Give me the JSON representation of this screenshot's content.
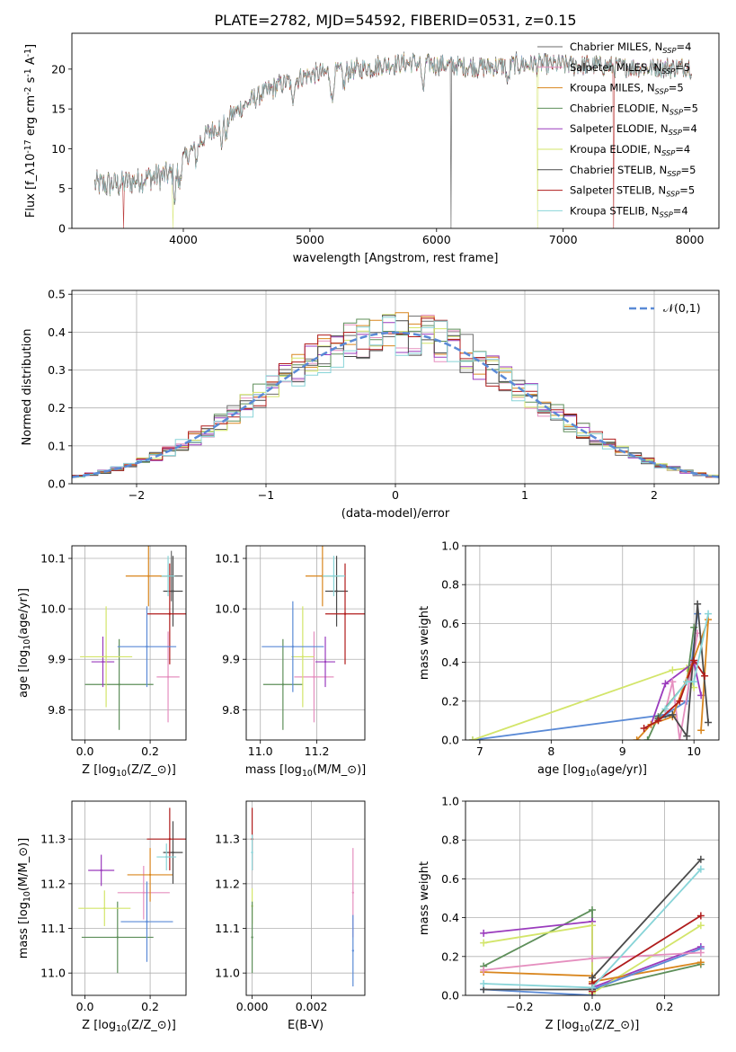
{
  "figure_title": "PLATE=2782, MJD=54592, FIBERID=0531, z=0.15",
  "colors": [
    "#6b6b6b",
    "#e58fbf",
    "#d9861e",
    "#5e8f5a",
    "#9a3bbd",
    "#d3e56a",
    "#4a4a4a",
    "#b01c1c",
    "#88d4d8"
  ],
  "normal_line_color": "#5a8ad6",
  "chart_data": [
    {
      "id": "spectrum",
      "type": "line",
      "title": "PLATE=2782, MJD=54592, FIBERID=0531, z=0.15",
      "xlabel": "wavelength [Angstrom, rest frame]",
      "ylabel": "Flux [f$_\\lambda$10$^{-17}$ erg cm$^{-2}$ s$^{-1}$ A$^{-1}$]",
      "xlim": [
        3120,
        8230
      ],
      "ylim": [
        0,
        24.5
      ],
      "xticks": [
        4000,
        5000,
        6000,
        7000,
        8000
      ],
      "yticks": [
        0,
        5,
        10,
        15,
        20
      ],
      "grid": false,
      "legend": "top-right",
      "series": [
        {
          "name": "Chabrier MILES, N_SSP=4"
        },
        {
          "name": "Salpeter MILES, N_SSP=5"
        },
        {
          "name": "Kroupa MILES, N_SSP=5"
        },
        {
          "name": "Chabrier ELODIE, N_SSP=5"
        },
        {
          "name": "Salpeter ELODIE, N_SSP=4"
        },
        {
          "name": "Kroupa ELODIE, N_SSP=4"
        },
        {
          "name": "Chabrier STELIB, N_SSP=5"
        },
        {
          "name": "Salpeter STELIB, N_SSP=5"
        },
        {
          "name": "Kroupa STELIB, N_SSP=4"
        }
      ],
      "continuum": {
        "x": [
          3300,
          3500,
          3700,
          3900,
          4000,
          4200,
          4400,
          4600,
          4800,
          5000,
          5200,
          5400,
          5600,
          5800,
          6000,
          6200,
          6400,
          6600,
          6800,
          7000,
          7200,
          7400,
          7600,
          7800,
          8000
        ],
        "y": [
          5.5,
          5.6,
          6.3,
          6.8,
          8.6,
          12.0,
          14.5,
          16.7,
          18.3,
          19.3,
          19.6,
          20.0,
          20.6,
          20.8,
          20.6,
          20.4,
          20.2,
          20.6,
          20.6,
          20.5,
          20.5,
          20.3,
          20.2,
          20.2,
          20.3
        ]
      },
      "features": [
        {
          "x": 3934,
          "depth": 3.5
        },
        {
          "x": 3969,
          "depth": 3.0
        },
        {
          "x": 4102,
          "depth": 2.0
        },
        {
          "x": 4300,
          "depth": 3.0
        },
        {
          "x": 4340,
          "depth": 2.5
        },
        {
          "x": 4861,
          "depth": 3.0
        },
        {
          "x": 5175,
          "depth": 4.0
        },
        {
          "x": 5270,
          "depth": 2.0
        },
        {
          "x": 5893,
          "depth": 4.0
        },
        {
          "x": 6563,
          "depth": 2.5
        }
      ],
      "gap_drops": [
        {
          "x": 3530,
          "series": 7
        },
        {
          "x": 3920,
          "series": 5
        },
        {
          "x": 6115,
          "series": 0
        },
        {
          "x": 6800,
          "series": 5
        },
        {
          "x": 7400,
          "series": 7
        }
      ]
    },
    {
      "id": "residual-hist",
      "type": "histogram",
      "xlabel": "(data-model)/error",
      "ylabel": "Normed distribution",
      "xlim": [
        -2.5,
        2.5
      ],
      "ylim": [
        0,
        0.51
      ],
      "xticks": [
        -2,
        -1,
        0,
        1,
        2
      ],
      "yticks": [
        0.0,
        0.1,
        0.2,
        0.3,
        0.4,
        0.5
      ],
      "grid": true,
      "legend": "top-right",
      "reference_curve": {
        "name": "$\\mathcal{N}(0,1)$",
        "mean": 0,
        "sigma": 1
      },
      "bin_width": 0.1
    },
    {
      "id": "age-vs-Z",
      "type": "scatter",
      "xlabel": "Z [log$_{10}$($Z/Z_\\odot$)]",
      "ylabel": "age  [log$_{10}$($age/yr$)]",
      "xlim": [
        -0.04,
        0.31
      ],
      "ylim": [
        9.74,
        10.125
      ],
      "xticks": [
        0.0,
        0.2
      ],
      "yticks": [
        9.8,
        9.9,
        10.0,
        10.1
      ],
      "grid": true,
      "points": [
        {
          "series": 0,
          "x": 0.265,
          "y": 10.065,
          "xerr": 0.035,
          "yerr": 0.05
        },
        {
          "series": 1,
          "x": 0.255,
          "y": 9.865,
          "xerr": 0.035,
          "yerr": 0.09
        },
        {
          "series": 2,
          "x": 0.195,
          "y": 10.065,
          "xerr": 0.07,
          "yerr": 0.06
        },
        {
          "series": 3,
          "x": 0.105,
          "y": 9.85,
          "xerr": 0.105,
          "yerr": 0.09
        },
        {
          "series": 4,
          "x": 0.055,
          "y": 9.895,
          "xerr": 0.035,
          "yerr": 0.05
        },
        {
          "series": 5,
          "x": 0.065,
          "y": 9.905,
          "xerr": 0.08,
          "yerr": 0.1
        },
        {
          "series": 6,
          "x": 0.27,
          "y": 10.035,
          "xerr": 0.03,
          "yerr": 0.07
        },
        {
          "series": 7,
          "x": 0.26,
          "y": 9.99,
          "xerr": 0.07,
          "yerr": 0.1
        },
        {
          "series": 8,
          "x": 0.255,
          "y": 10.065,
          "xerr": 0.02,
          "yerr": 0.04
        },
        {
          "series": 9,
          "x": 0.19,
          "y": 9.925,
          "xerr": 0.09,
          "yerr": 0.08
        }
      ]
    },
    {
      "id": "age-vs-mass",
      "type": "scatter",
      "xlabel": "mass [log$_{10}$($M/M_\\odot$)]",
      "ylabel": "",
      "xlim": [
        10.95,
        11.37
      ],
      "ylim": [
        9.74,
        10.125
      ],
      "xticks": [
        11.0,
        11.2
      ],
      "yticks": [
        9.8,
        9.9,
        10.0,
        10.1
      ],
      "grid": true,
      "points": [
        {
          "series": 1,
          "x": 11.19,
          "y": 9.865,
          "xerr": 0.07,
          "yerr": 0.09
        },
        {
          "series": 2,
          "x": 11.22,
          "y": 10.065,
          "xerr": 0.06,
          "yerr": 0.06
        },
        {
          "series": 3,
          "x": 11.08,
          "y": 9.85,
          "xerr": 0.07,
          "yerr": 0.09
        },
        {
          "series": 4,
          "x": 11.23,
          "y": 9.895,
          "xerr": 0.035,
          "yerr": 0.05
        },
        {
          "series": 5,
          "x": 11.15,
          "y": 9.905,
          "xerr": 0.04,
          "yerr": 0.1
        },
        {
          "series": 6,
          "x": 11.27,
          "y": 10.035,
          "xerr": 0.04,
          "yerr": 0.07
        },
        {
          "series": 7,
          "x": 11.3,
          "y": 9.99,
          "xerr": 0.07,
          "yerr": 0.1
        },
        {
          "series": 8,
          "x": 11.26,
          "y": 10.065,
          "xerr": 0.04,
          "yerr": 0.04
        },
        {
          "series": 9,
          "x": 11.115,
          "y": 9.925,
          "xerr": 0.11,
          "yerr": 0.09
        }
      ]
    },
    {
      "id": "mass-weight-vs-age",
      "type": "line",
      "xlabel": "age  [log$_{10}$($age/yr$)]",
      "ylabel": "mass weight",
      "xlim": [
        6.8,
        10.35
      ],
      "ylim": [
        0,
        1.0
      ],
      "xticks": [
        7,
        8,
        9,
        10
      ],
      "yticks": [
        0.0,
        0.2,
        0.4,
        0.6,
        0.8,
        1.0
      ],
      "grid": true,
      "series": [
        {
          "series": 9,
          "x": [
            6.9,
            9.6,
            9.9,
            10.05
          ],
          "y": [
            0.0,
            0.13,
            0.2,
            0.65
          ]
        },
        {
          "series": 5,
          "x": [
            6.9,
            9.7,
            9.9,
            10.0
          ],
          "y": [
            0.0,
            0.36,
            0.37,
            0.27
          ]
        },
        {
          "series": 4,
          "x": [
            9.4,
            9.6,
            10.0,
            10.1
          ],
          "y": [
            0.08,
            0.29,
            0.4,
            0.23
          ]
        },
        {
          "series": 1,
          "x": [
            9.6,
            9.7,
            9.8,
            10.05
          ],
          "y": [
            0.15,
            0.3,
            0.0,
            0.55
          ]
        },
        {
          "series": 3,
          "x": [
            9.35,
            9.5,
            9.9,
            10.0
          ],
          "y": [
            0.0,
            0.12,
            0.3,
            0.58
          ]
        },
        {
          "series": 2,
          "x": [
            9.2,
            9.4,
            9.7,
            10.2,
            10.1
          ],
          "y": [
            0.0,
            0.08,
            0.12,
            0.62,
            0.05
          ]
        },
        {
          "series": 6,
          "x": [
            9.5,
            9.7,
            9.9,
            10.05,
            10.2
          ],
          "y": [
            0.11,
            0.13,
            0.02,
            0.7,
            0.09
          ]
        },
        {
          "series": 7,
          "x": [
            9.3,
            9.5,
            9.8,
            10.0,
            10.15
          ],
          "y": [
            0.06,
            0.1,
            0.2,
            0.41,
            0.33
          ]
        },
        {
          "series": 8,
          "x": [
            9.6,
            9.9,
            10.0,
            10.2
          ],
          "y": [
            0.16,
            0.3,
            0.3,
            0.65
          ]
        }
      ]
    },
    {
      "id": "mass-vs-Z",
      "type": "scatter",
      "xlabel": "Z [log$_{10}$($Z/Z_\\odot$)]",
      "ylabel": "mass [log$_{10}$($M/M_\\odot$)]",
      "xlim": [
        -0.04,
        0.31
      ],
      "ylim": [
        10.95,
        11.385
      ],
      "xticks": [
        0.0,
        0.2
      ],
      "yticks": [
        11.0,
        11.1,
        11.2,
        11.3
      ],
      "grid": true,
      "points": [
        {
          "series": 1,
          "x": 0.18,
          "y": 11.18,
          "xerr": 0.08,
          "yerr": 0.06
        },
        {
          "series": 2,
          "x": 0.2,
          "y": 11.22,
          "xerr": 0.07,
          "yerr": 0.06
        },
        {
          "series": 3,
          "x": 0.1,
          "y": 11.08,
          "xerr": 0.11,
          "yerr": 0.08
        },
        {
          "series": 4,
          "x": 0.05,
          "y": 11.23,
          "xerr": 0.04,
          "yerr": 0.035
        },
        {
          "series": 5,
          "x": 0.06,
          "y": 11.145,
          "xerr": 0.08,
          "yerr": 0.04
        },
        {
          "series": 6,
          "x": 0.27,
          "y": 11.27,
          "xerr": 0.03,
          "yerr": 0.07
        },
        {
          "series": 7,
          "x": 0.26,
          "y": 11.3,
          "xerr": 0.07,
          "yerr": 0.07
        },
        {
          "series": 8,
          "x": 0.25,
          "y": 11.26,
          "xerr": 0.03,
          "yerr": 0.03
        },
        {
          "series": 9,
          "x": 0.19,
          "y": 11.115,
          "xerr": 0.08,
          "yerr": 0.09
        }
      ]
    },
    {
      "id": "mass-vs-ebv",
      "type": "scatter",
      "xlabel": "E(B-V)",
      "ylabel": "",
      "xlim": [
        -0.0002,
        0.0038
      ],
      "ylim": [
        10.95,
        11.385
      ],
      "xticks": [
        0.0,
        0.002
      ],
      "yticks": [
        11.0,
        11.1,
        11.2,
        11.3
      ],
      "grid": true,
      "points": [
        {
          "series": 7,
          "x": 0.0,
          "y": 11.3,
          "xerr": 0.0,
          "yerr": 0.07
        },
        {
          "series": 5,
          "x": 0.0,
          "y": 11.15,
          "xerr": 0.0,
          "yerr": 0.04
        },
        {
          "series": 8,
          "x": 0.0,
          "y": 11.27,
          "xerr": 0.0,
          "yerr": 0.04
        },
        {
          "series": 3,
          "x": 0.0,
          "y": 11.08,
          "xerr": 0.0,
          "yerr": 0.08
        },
        {
          "series": 1,
          "x": 0.0034,
          "y": 11.18,
          "xerr": 0.0,
          "yerr": 0.1
        },
        {
          "series": 9,
          "x": 0.0034,
          "y": 11.05,
          "xerr": 0.0,
          "yerr": 0.08
        }
      ]
    },
    {
      "id": "mass-weight-vs-Z",
      "type": "line",
      "xlabel": "Z [log$_{10}$($Z/Z_\\odot$)]",
      "ylabel": "mass weight",
      "xlim": [
        -0.35,
        0.35
      ],
      "ylim": [
        0,
        1.0
      ],
      "xticks": [
        -0.2,
        0.0,
        0.2
      ],
      "yticks": [
        0.0,
        0.2,
        0.4,
        0.6,
        0.8,
        1.0
      ],
      "grid": true,
      "series": [
        {
          "series": 3,
          "x": [
            -0.3,
            0.0,
            0.0,
            0.3
          ],
          "y": [
            0.15,
            0.44,
            0.03,
            0.16
          ]
        },
        {
          "series": 4,
          "x": [
            -0.3,
            0.0,
            0.0,
            0.3
          ],
          "y": [
            0.32,
            0.38,
            0.04,
            0.25
          ]
        },
        {
          "series": 5,
          "x": [
            -0.3,
            0.0,
            0.0,
            0.3
          ],
          "y": [
            0.27,
            0.36,
            0.01,
            0.36
          ]
        },
        {
          "series": 2,
          "x": [
            -0.3,
            0.0,
            0.0,
            0.3
          ],
          "y": [
            0.12,
            0.1,
            0.07,
            0.17
          ]
        },
        {
          "series": 9,
          "x": [
            -0.3,
            0.0,
            0.0,
            0.3
          ],
          "y": [
            0.03,
            0.0,
            0.03,
            0.24
          ]
        },
        {
          "series": 1,
          "x": [
            -0.3,
            0.0,
            0.3
          ],
          "y": [
            0.13,
            0.19,
            0.22
          ]
        },
        {
          "series": 6,
          "x": [
            -0.3,
            0.0,
            0.0,
            0.3
          ],
          "y": [
            0.03,
            0.03,
            0.09,
            0.7
          ]
        },
        {
          "series": 7,
          "x": [
            0.0,
            0.0,
            0.3
          ],
          "y": [
            0.02,
            0.06,
            0.41
          ]
        },
        {
          "series": 8,
          "x": [
            -0.3,
            0.0,
            0.3
          ],
          "y": [
            0.06,
            0.04,
            0.65
          ]
        }
      ]
    }
  ]
}
